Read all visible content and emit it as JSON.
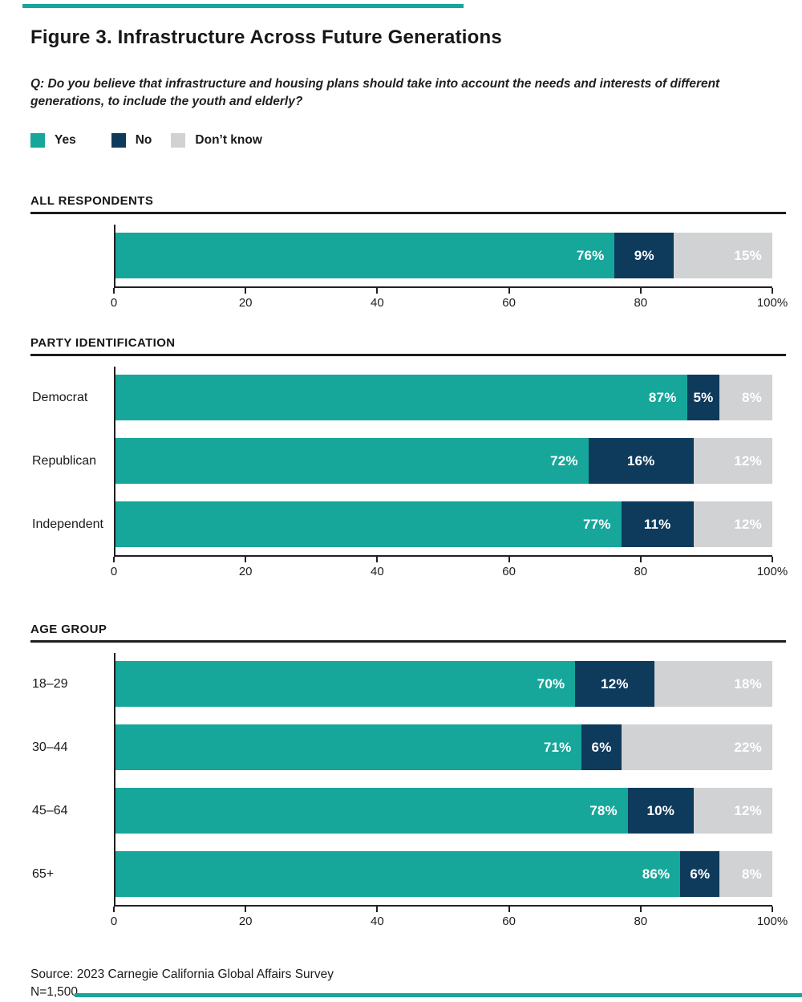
{
  "page": {
    "title": "Figure 3. Infrastructure Across Future Generations",
    "question": "Q: Do you believe that infrastructure and housing plans should take into account the needs and interests of different generations, to include the youth and elderly?",
    "source_line": "Source: 2023 Carnegie California Global Affairs Survey",
    "sample_line": "N=1,500"
  },
  "colors": {
    "yes": "#16a69a",
    "no": "#0e3a5c",
    "dont_know": "#d1d2d4",
    "accent_rule": "#16a69a",
    "series": [
      "#16a69a",
      "#0e3a5c",
      "#d1d2d4"
    ]
  },
  "legend": {
    "items": [
      {
        "label": "Yes",
        "color": "#16a69a"
      },
      {
        "label": "No",
        "color": "#0e3a5c"
      },
      {
        "label": "Don’t know",
        "color": "#d1d2d4"
      }
    ]
  },
  "chart_data": [
    {
      "type": "bar",
      "stacked": true,
      "orientation": "horizontal",
      "title": "ALL RESPONDENTS",
      "categories": [
        ""
      ],
      "series": [
        {
          "name": "Yes",
          "values": [
            76
          ]
        },
        {
          "name": "No",
          "values": [
            9
          ]
        },
        {
          "name": "Don’t know",
          "values": [
            15
          ]
        }
      ],
      "xlim": [
        0,
        100
      ],
      "x_ticks": [
        "0",
        "20",
        "40",
        "60",
        "80",
        "100%"
      ],
      "grid": false,
      "legend_position": "top"
    },
    {
      "type": "bar",
      "stacked": true,
      "orientation": "horizontal",
      "title": "PARTY IDENTIFICATION",
      "categories": [
        "Democrat",
        "Republican",
        "Independent"
      ],
      "series": [
        {
          "name": "Yes",
          "values": [
            87,
            72,
            77
          ]
        },
        {
          "name": "No",
          "values": [
            5,
            16,
            11
          ]
        },
        {
          "name": "Don’t know",
          "values": [
            8,
            12,
            12
          ]
        }
      ],
      "xlim": [
        0,
        100
      ],
      "x_ticks": [
        "0",
        "20",
        "40",
        "60",
        "80",
        "100%"
      ],
      "grid": false,
      "legend_position": "top"
    },
    {
      "type": "bar",
      "stacked": true,
      "orientation": "horizontal",
      "title": "AGE GROUP",
      "categories": [
        "18–29",
        "30–44",
        "45–64",
        "65+"
      ],
      "series": [
        {
          "name": "Yes",
          "values": [
            70,
            71,
            78,
            86
          ]
        },
        {
          "name": "No",
          "values": [
            12,
            6,
            10,
            6
          ]
        },
        {
          "name": "Don’t know",
          "values": [
            18,
            22,
            12,
            8
          ]
        }
      ],
      "xlim": [
        0,
        100
      ],
      "x_ticks": [
        "0",
        "20",
        "40",
        "60",
        "80",
        "100%"
      ],
      "grid": false,
      "legend_position": "top"
    }
  ]
}
